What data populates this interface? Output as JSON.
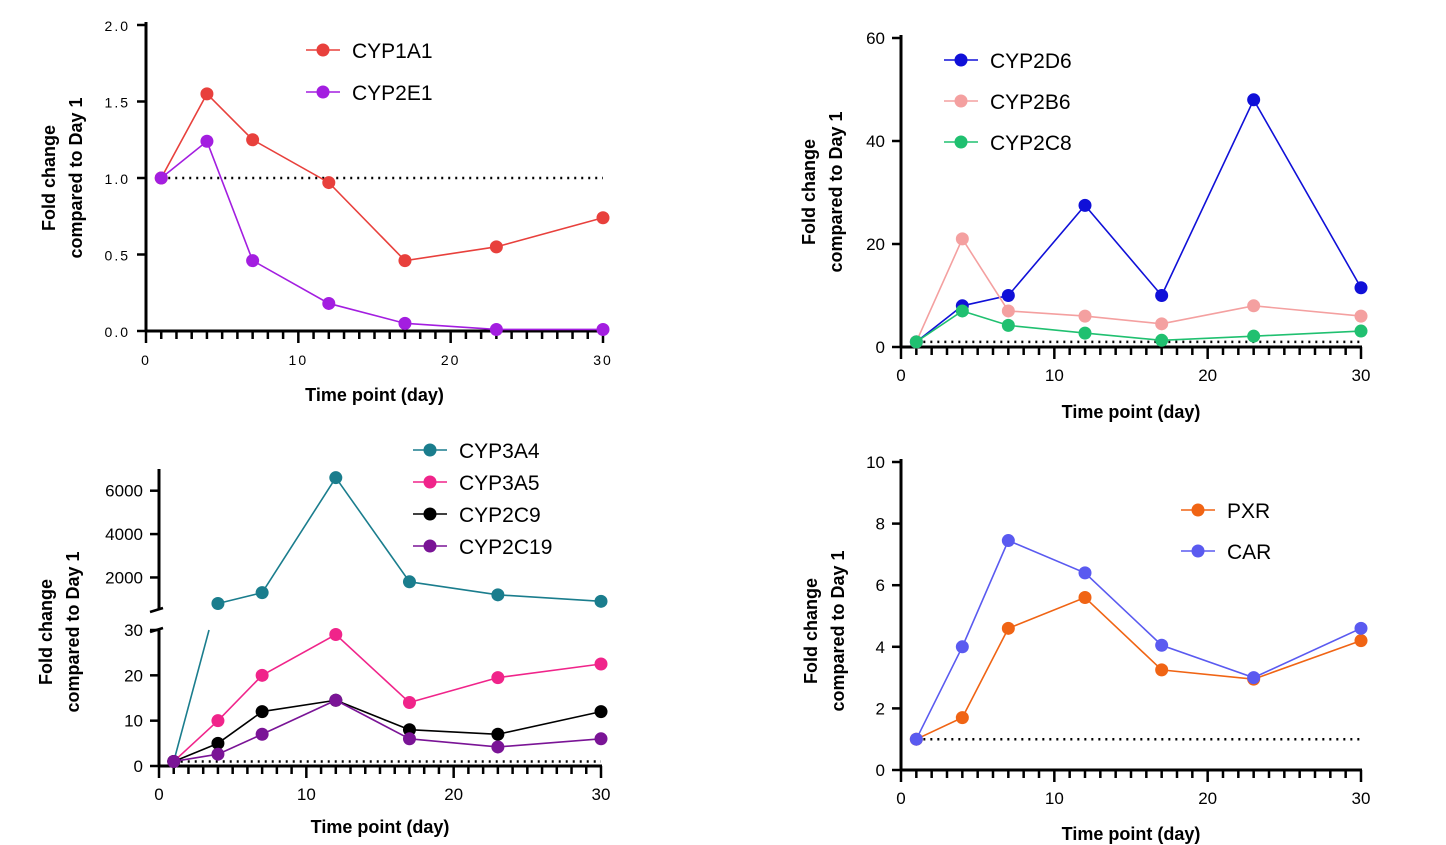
{
  "chart_data": [
    {
      "id": "p1",
      "type": "line",
      "xlabel": "Time point (day)",
      "ylabel": [
        "Fold change",
        "compared to Day 1"
      ],
      "xlim": [
        0,
        30
      ],
      "ylim": [
        0,
        2
      ],
      "x_ticks": [
        "0",
        "10",
        "20",
        "30"
      ],
      "y_ticks": [
        "0.0",
        "0.5",
        "1.0",
        "1.5",
        "2.0"
      ],
      "y_tick_values": [
        0,
        0.5,
        1,
        1.5,
        2
      ],
      "reference_line": 1,
      "series": [
        {
          "name": "CYP1A1",
          "color": "#e8403c",
          "x": [
            1,
            4,
            7,
            12,
            17,
            23,
            30
          ],
          "y": [
            1.0,
            1.55,
            1.25,
            0.97,
            0.46,
            0.55,
            0.74
          ]
        },
        {
          "name": "CYP2E1",
          "color": "#a31ee0",
          "x": [
            1,
            4,
            7,
            12,
            17,
            23,
            30
          ],
          "y": [
            1.0,
            1.24,
            0.46,
            0.18,
            0.05,
            0.01,
            0.01
          ]
        }
      ]
    },
    {
      "id": "p2",
      "type": "line",
      "xlabel": "Time point (day)",
      "ylabel": [
        "Fold change",
        "compared to Day 1"
      ],
      "xlim": [
        0,
        30
      ],
      "ylim": [
        0,
        60
      ],
      "x_ticks": [
        "0",
        "10",
        "20",
        "30"
      ],
      "y_ticks": [
        "0",
        "20",
        "40",
        "60"
      ],
      "y_tick_values": [
        0,
        20,
        40,
        60
      ],
      "reference_line": 1,
      "series": [
        {
          "name": "CYP2D6",
          "color": "#1010d8",
          "x": [
            1,
            4,
            7,
            12,
            17,
            23,
            30
          ],
          "y": [
            1,
            8,
            10,
            27.5,
            10,
            48,
            11.5
          ]
        },
        {
          "name": "CYP2B6",
          "color": "#f4a0a0",
          "x": [
            1,
            4,
            7,
            12,
            17,
            23,
            30
          ],
          "y": [
            1,
            21,
            7,
            6,
            4.5,
            8,
            6
          ]
        },
        {
          "name": "CYP2C8",
          "color": "#20c070",
          "x": [
            1,
            4,
            7,
            12,
            17,
            23,
            30
          ],
          "y": [
            1,
            7,
            4.2,
            2.7,
            1.3,
            2.1,
            3.1
          ]
        }
      ]
    },
    {
      "id": "p3",
      "type": "line",
      "xlabel": "Time point (day)",
      "ylabel": [
        "Fold change",
        "compared to Day 1"
      ],
      "xlim": [
        0,
        30
      ],
      "ylim_lower": [
        0,
        30
      ],
      "ylim_upper": [
        500,
        7000
      ],
      "axis_break": true,
      "x_ticks": [
        "0",
        "10",
        "20",
        "30"
      ],
      "y_ticks_lower": [
        "0",
        "10",
        "20",
        "30"
      ],
      "y_tick_values_lower": [
        0,
        10,
        20,
        30
      ],
      "y_ticks_upper": [
        "2000",
        "4000",
        "6000"
      ],
      "y_tick_values_upper": [
        2000,
        4000,
        6000
      ],
      "reference_line": 1,
      "series": [
        {
          "name": "CYP3A4",
          "color": "#1a7d8d",
          "x": [
            1,
            4,
            7,
            12,
            17,
            23,
            30
          ],
          "y": [
            1,
            800,
            1300,
            6600,
            1800,
            1200,
            900
          ]
        },
        {
          "name": "CYP3A5",
          "color": "#f0248a",
          "x": [
            1,
            4,
            7,
            12,
            17,
            23,
            30
          ],
          "y": [
            1,
            10,
            20,
            29,
            14,
            19.5,
            22.5
          ]
        },
        {
          "name": "CYP2C9",
          "color": "#000000",
          "x": [
            1,
            4,
            7,
            12,
            17,
            23,
            30
          ],
          "y": [
            1,
            5,
            12,
            14.5,
            8,
            7,
            12
          ]
        },
        {
          "name": "CYP2C19",
          "color": "#7a1496",
          "x": [
            1,
            4,
            7,
            12,
            17,
            23,
            30
          ],
          "y": [
            1,
            2.6,
            7,
            14.5,
            6,
            4.2,
            6
          ]
        }
      ]
    },
    {
      "id": "p4",
      "type": "line",
      "xlabel": "Time point (day)",
      "ylabel": [
        "Fold change",
        "compared to Day 1"
      ],
      "xlim": [
        0,
        30
      ],
      "ylim": [
        0,
        10
      ],
      "x_ticks": [
        "0",
        "10",
        "20",
        "30"
      ],
      "y_ticks": [
        "0",
        "2",
        "4",
        "6",
        "8",
        "10"
      ],
      "y_tick_values": [
        0,
        2,
        4,
        6,
        8,
        10
      ],
      "reference_line": 1,
      "series": [
        {
          "name": "PXR",
          "color": "#f06414",
          "x": [
            1,
            4,
            7,
            12,
            17,
            23,
            30
          ],
          "y": [
            1,
            1.7,
            4.6,
            5.6,
            3.25,
            2.95,
            4.2
          ]
        },
        {
          "name": "CAR",
          "color": "#5a5af0",
          "x": [
            1,
            4,
            7,
            12,
            17,
            23,
            30
          ],
          "y": [
            1,
            4,
            7.45,
            6.4,
            4.05,
            3.0,
            4.6
          ]
        }
      ]
    }
  ]
}
